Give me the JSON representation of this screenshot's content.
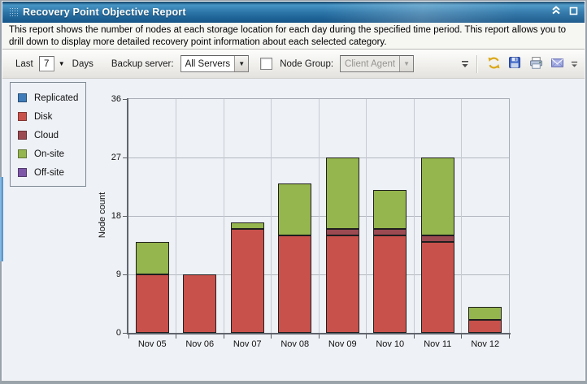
{
  "window": {
    "title": "Recovery Point Objective Report"
  },
  "description": "This report shows the number of nodes at each storage location for each day during the specified time period. This report allows you to drill down to display more detailed recovery point information about each selected category.",
  "toolbar": {
    "last_label": "Last",
    "last_value": "7",
    "days_label": "Days",
    "backup_server_label": "Backup server:",
    "backup_server_value": "All Servers",
    "node_group_checked": false,
    "node_group_label": "Node Group:",
    "node_group_value": "Client Agent",
    "icons": [
      "refresh-icon",
      "save-icon",
      "print-icon",
      "email-icon"
    ]
  },
  "chart_data": {
    "type": "bar",
    "stacked": true,
    "title": "",
    "categories": [
      "Nov 05",
      "Nov 06",
      "Nov 07",
      "Nov 08",
      "Nov 09",
      "Nov 10",
      "Nov 11",
      "Nov 12"
    ],
    "series": [
      {
        "name": "Replicated",
        "color": "#3f7cb9",
        "values": [
          0,
          0,
          0,
          0,
          0,
          0,
          0,
          0
        ]
      },
      {
        "name": "Disk",
        "color": "#c8514c",
        "values": [
          9,
          9,
          16,
          15,
          15,
          15,
          14,
          2
        ]
      },
      {
        "name": "Cloud",
        "color": "#9c4a52",
        "values": [
          0,
          0,
          0,
          0,
          1,
          1,
          1,
          0
        ]
      },
      {
        "name": "On-site",
        "color": "#95b54e",
        "values": [
          5,
          0,
          1,
          8,
          11,
          6,
          12,
          2
        ]
      },
      {
        "name": "Off-site",
        "color": "#7e57a8",
        "values": [
          0,
          0,
          0,
          0,
          0,
          0,
          0,
          0
        ]
      }
    ],
    "totals": [
      14,
      9,
      17,
      23,
      27,
      22,
      27,
      4
    ],
    "xlabel": "",
    "ylabel": "Node count",
    "ylim": [
      0,
      36
    ],
    "yticks": [
      0,
      9,
      18,
      27,
      36
    ],
    "grid": true,
    "legend_position": "left"
  }
}
